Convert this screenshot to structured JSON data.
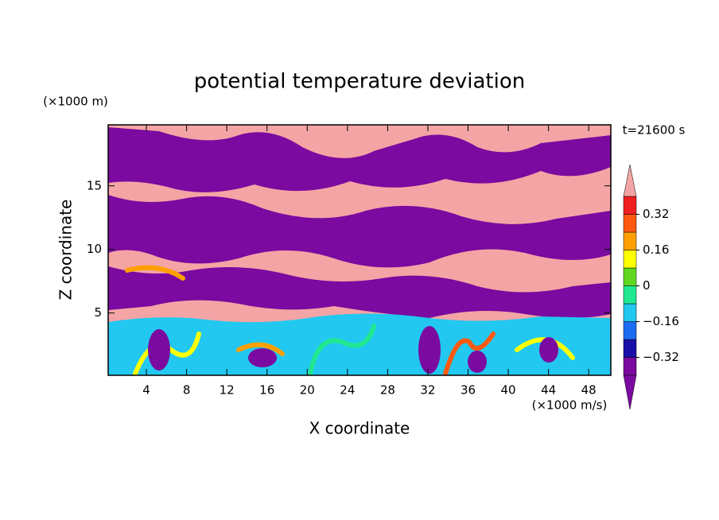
{
  "chart_data": {
    "type": "contour",
    "title": "potential temperature deviation",
    "xlabel": "X coordinate",
    "ylabel": "Z coordinate",
    "xunit": "(×1000 m/s)",
    "yunit": "(×1000 m)",
    "annotation": "t=21600 s",
    "xlim": [
      0.2,
      50.2
    ],
    "xticks": [
      4,
      8,
      12,
      16,
      20,
      24,
      28,
      32,
      36,
      40,
      44,
      48
    ],
    "ylim": [
      0.1,
      19.8
    ],
    "yticks": [
      5,
      10,
      15
    ],
    "clim": [
      -0.4,
      0.4
    ],
    "cticks": [
      {
        "value": -0.32,
        "label": "−0.32"
      },
      {
        "value": -0.16,
        "label": "−0.16"
      },
      0,
      0.16,
      0.32
    ],
    "colors": [
      "#7a0aa0",
      "#1a10a8",
      "#1a6cf0",
      "#22c8f0",
      "#20e890",
      "#60d820",
      "#ffff00",
      "#ffa000",
      "#ff5a10",
      "#f02020"
    ],
    "under_color": "#7a0aa0",
    "over_color": "#f4a4a4"
  }
}
